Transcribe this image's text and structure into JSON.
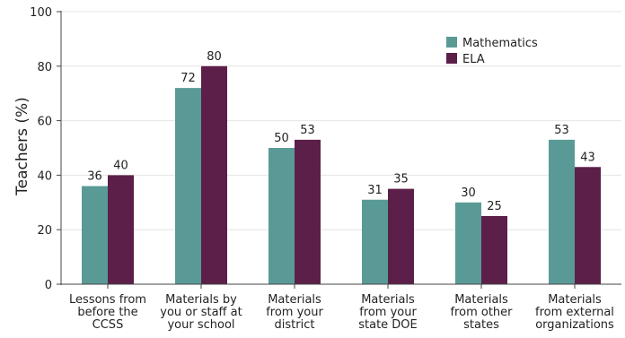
{
  "chart_data": {
    "type": "bar",
    "title": "",
    "xlabel": "",
    "ylabel": "Teachers (%)",
    "ylim": [
      0,
      100
    ],
    "yticks": [
      "0",
      "20",
      "40",
      "60",
      "80",
      "100"
    ],
    "grid": true,
    "legend_position": "top-right",
    "categories": [
      [
        "Lessons from",
        "before the",
        "CCSS"
      ],
      [
        "Materials by",
        "you or staff at",
        "your school"
      ],
      [
        "Materials",
        "from your",
        "district"
      ],
      [
        "Materials",
        "from your",
        "state DOE"
      ],
      [
        "Materials",
        "from other",
        "states"
      ],
      [
        "Materials",
        "from external",
        "organizations"
      ]
    ],
    "series": [
      {
        "name": "Mathematics",
        "color": "#5a9a96",
        "values": [
          36,
          72,
          50,
          31,
          30,
          53
        ]
      },
      {
        "name": "ELA",
        "color": "#5c1f4a",
        "values": [
          40,
          80,
          53,
          35,
          25,
          43
        ]
      }
    ]
  }
}
